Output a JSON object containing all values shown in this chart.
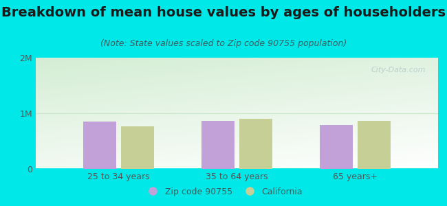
{
  "title": "Breakdown of mean house values by ages of householders",
  "subtitle": "(Note: State values scaled to Zip code 90755 population)",
  "categories": [
    "25 to 34 years",
    "35 to 64 years",
    "65 years+"
  ],
  "zip_values": [
    850000,
    870000,
    790000
  ],
  "ca_values": [
    760000,
    900000,
    860000
  ],
  "ylim": [
    0,
    2000000
  ],
  "yticks": [
    0,
    1000000,
    2000000
  ],
  "ytick_labels": [
    "0",
    "1M",
    "2M"
  ],
  "bar_color_zip": "#c2a0d8",
  "bar_color_ca": "#c5cf96",
  "background_outer": "#00e8e8",
  "background_inner_topleft": "#d4edd4",
  "background_inner_topright": "#e8f5e8",
  "background_inner_bottom": "#f0f8e8",
  "legend_zip": "Zip code 90755",
  "legend_ca": "California",
  "watermark": "City-Data.com",
  "title_fontsize": 14,
  "subtitle_fontsize": 9,
  "axis_label_fontsize": 9,
  "legend_fontsize": 9,
  "tick_color": "#555555",
  "title_color": "#1a1a1a",
  "subtitle_color": "#3a6060"
}
